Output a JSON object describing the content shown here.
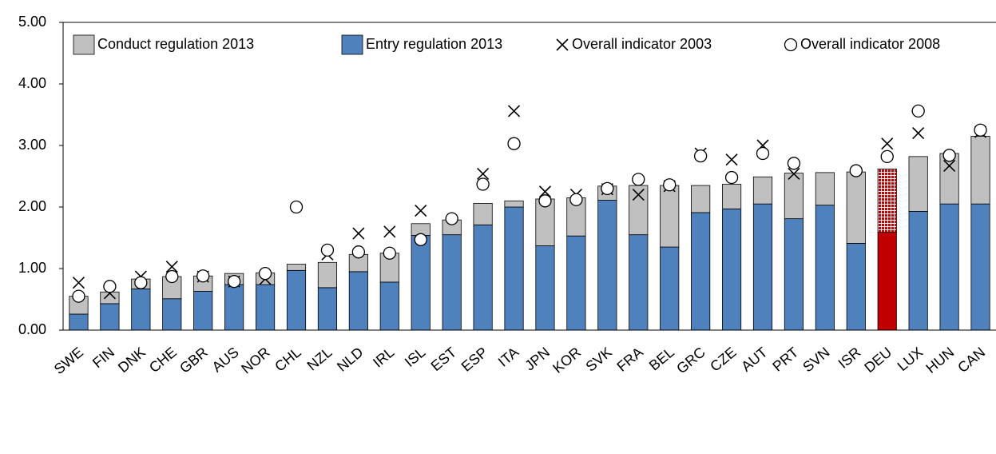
{
  "chart_data": {
    "type": "bar",
    "categories": [
      "SWE",
      "FIN",
      "DNK",
      "CHE",
      "GBR",
      "AUS",
      "NOR",
      "CHL",
      "NZL",
      "NLD",
      "IRL",
      "ISL",
      "EST",
      "ESP",
      "ITA",
      "JPN",
      "KOR",
      "SVK",
      "FRA",
      "BEL",
      "GRC",
      "CZE",
      "AUT",
      "PRT",
      "SVN",
      "ISR",
      "DEU",
      "LUX",
      "HUN",
      "CAN"
    ],
    "stacked": true,
    "highlight": "DEU",
    "series": [
      {
        "name": "Conduct regulation 2013",
        "type": "bar",
        "color": "#c0c0c0",
        "highlight_color": "#c00000",
        "values": [
          0.29,
          0.19,
          0.16,
          0.36,
          0.25,
          0.18,
          0.19,
          0.1,
          0.41,
          0.28,
          0.47,
          0.19,
          0.24,
          0.35,
          0.1,
          0.76,
          0.62,
          0.23,
          0.8,
          1.0,
          0.44,
          0.4,
          0.44,
          0.74,
          0.53,
          1.16,
          1.03,
          0.89,
          0.82,
          1.1
        ]
      },
      {
        "name": "Entry regulation 2013",
        "type": "bar",
        "color": "#4f81bd",
        "highlight_color": "#c00000",
        "values": [
          0.26,
          0.43,
          0.67,
          0.51,
          0.63,
          0.74,
          0.74,
          0.97,
          0.69,
          0.95,
          0.78,
          1.54,
          1.55,
          1.71,
          2.0,
          1.37,
          1.53,
          2.11,
          1.55,
          1.35,
          1.91,
          1.97,
          2.05,
          1.81,
          2.03,
          1.41,
          1.59,
          1.93,
          2.05,
          2.05
        ]
      },
      {
        "name": "Overall indicator 2003",
        "type": "scatter",
        "marker": "x",
        "color": "#000000",
        "values": [
          0.77,
          0.6,
          0.87,
          1.03,
          0.87,
          0.79,
          0.83,
          null,
          1.23,
          1.57,
          1.6,
          1.94,
          null,
          2.54,
          3.56,
          2.25,
          2.2,
          2.29,
          2.2,
          2.34,
          2.87,
          2.77,
          3.0,
          2.54,
          null,
          null,
          3.03,
          3.2,
          2.67,
          3.22
        ]
      },
      {
        "name": "Overall indicator 2008",
        "type": "scatter",
        "marker": "circle",
        "color": "#000000",
        "values": [
          0.55,
          0.71,
          0.77,
          0.87,
          0.88,
          0.79,
          0.92,
          2.0,
          1.3,
          1.27,
          1.25,
          1.47,
          1.81,
          2.37,
          3.03,
          2.1,
          2.12,
          2.3,
          2.45,
          2.36,
          2.83,
          2.48,
          2.87,
          2.71,
          null,
          2.59,
          2.82,
          3.56,
          2.84,
          3.25
        ]
      }
    ],
    "ylim": [
      0,
      5
    ],
    "yticks": [
      {
        "value": 0,
        "label": "0.00"
      },
      {
        "value": 1,
        "label": "1.00"
      },
      {
        "value": 2,
        "label": "2.00"
      },
      {
        "value": 3,
        "label": "3.00"
      },
      {
        "value": 4,
        "label": "4.00"
      },
      {
        "value": 5,
        "label": "5.00"
      }
    ],
    "grid": false,
    "legend": "top"
  }
}
